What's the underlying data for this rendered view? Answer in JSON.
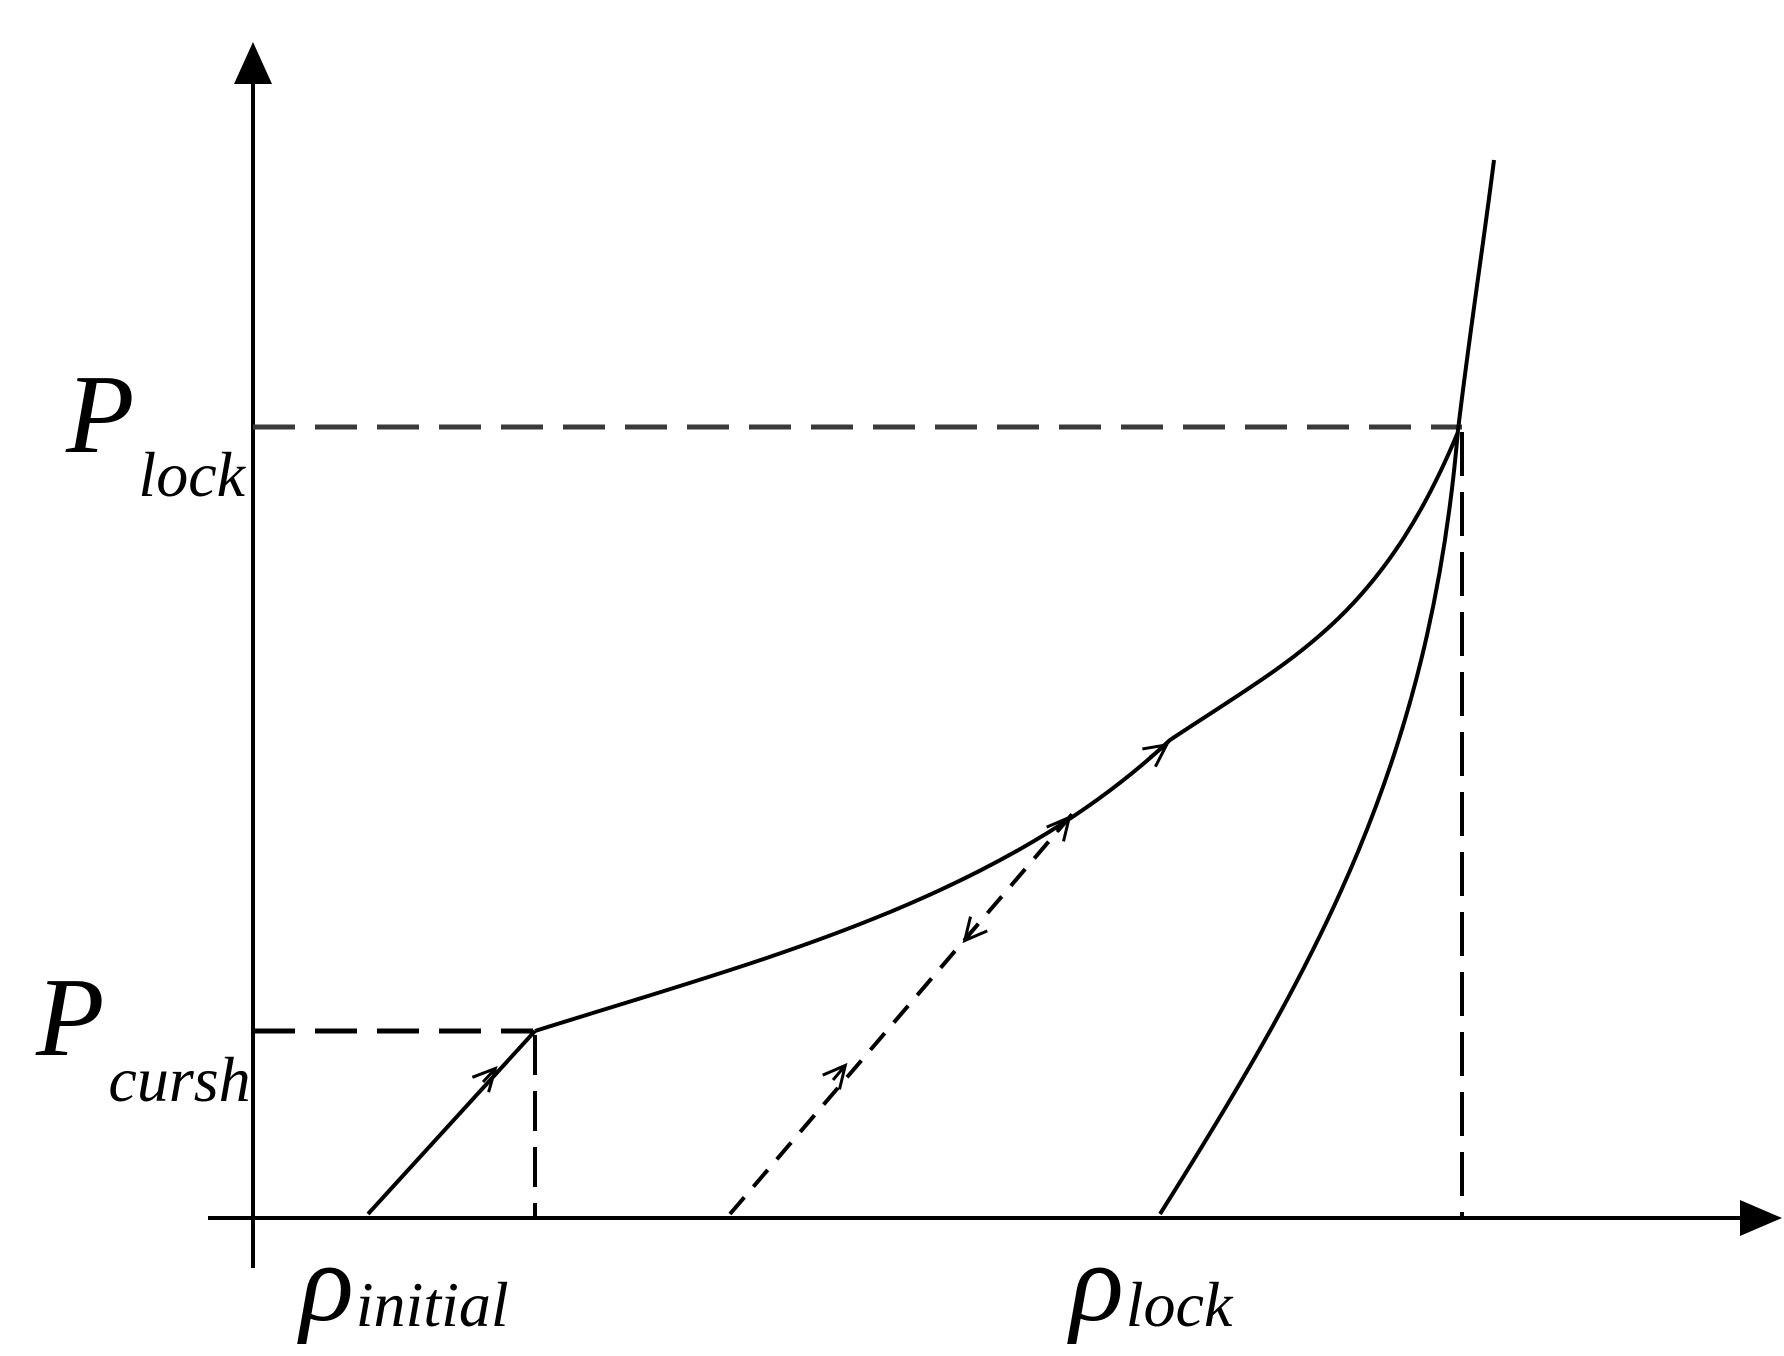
{
  "labels": {
    "p_lock_main": "P",
    "p_lock_sub": "lock",
    "p_crush_main": "P",
    "p_crush_sub": "cursh",
    "rho_initial_main": "ρ",
    "rho_initial_sub": "initial",
    "rho_lock_main": "ρ",
    "rho_lock_sub": "lock"
  },
  "colors": {
    "ink": "#000000",
    "guide": "#3a3a3a"
  }
}
